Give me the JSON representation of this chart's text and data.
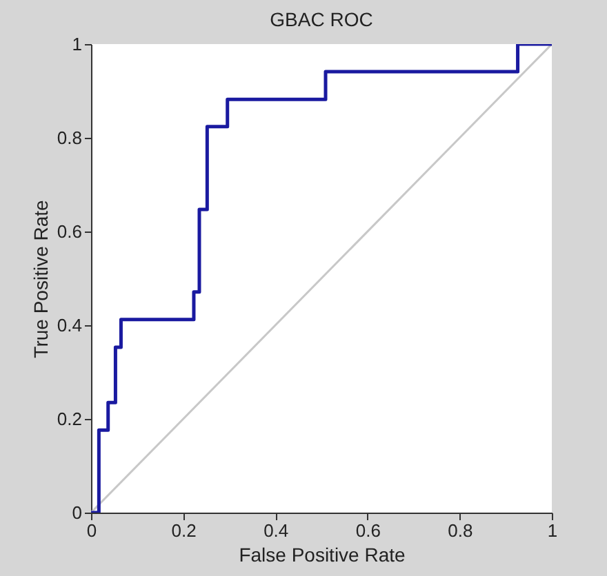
{
  "chart_data": {
    "type": "step",
    "title": "GBAC ROC",
    "xlabel": "False Positive Rate",
    "ylabel": "True Positive Rate",
    "xlim": [
      0,
      1
    ],
    "ylim": [
      0,
      1
    ],
    "xticks": [
      0,
      0.2,
      0.4,
      0.6,
      0.8,
      1
    ],
    "yticks": [
      0,
      0.2,
      0.4,
      0.6,
      0.8,
      1
    ],
    "grid": false,
    "series": [
      {
        "type": "line",
        "color": "#c8c8c8",
        "x": [
          0,
          1
        ],
        "values": [
          0,
          1
        ]
      },
      {
        "color": "#1a1aa0",
        "x": [
          0,
          0.017,
          0.037,
          0.053,
          0.065,
          0.223,
          0.235,
          0.252,
          0.296,
          0.509,
          0.926,
          1
        ],
        "values": [
          0,
          0.176,
          0.235,
          0.353,
          0.412,
          0.471,
          0.647,
          0.824,
          0.882,
          0.941,
          1,
          1
        ]
      }
    ]
  }
}
